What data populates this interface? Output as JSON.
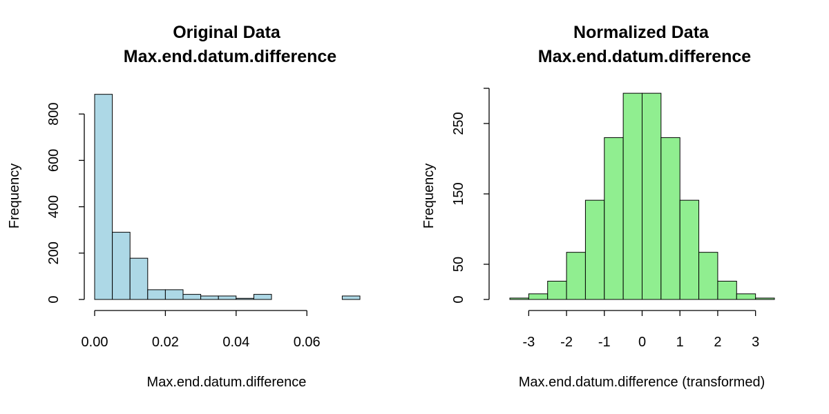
{
  "chart_data": [
    {
      "type": "bar",
      "title": "Original Data",
      "subtitle": "Max.end.datum.difference",
      "xlabel": "Max.end.datum.difference",
      "ylabel": "Frequency",
      "bar_color": "#add8e6",
      "xlim": [
        0,
        0.075
      ],
      "ylim": [
        0,
        890
      ],
      "x_ticks": [
        0,
        0.02,
        0.04,
        0.06
      ],
      "x_tick_labels": [
        "0.00",
        "0.02",
        "0.04",
        "0.06"
      ],
      "y_ticks": [
        0,
        200,
        400,
        600,
        800
      ],
      "y_tick_labels": [
        "0",
        "200",
        "400",
        "600",
        "800"
      ],
      "bins": [
        {
          "start": 0.0,
          "end": 0.005,
          "count": 885
        },
        {
          "start": 0.005,
          "end": 0.01,
          "count": 290
        },
        {
          "start": 0.01,
          "end": 0.015,
          "count": 178
        },
        {
          "start": 0.015,
          "end": 0.02,
          "count": 42
        },
        {
          "start": 0.02,
          "end": 0.025,
          "count": 42
        },
        {
          "start": 0.025,
          "end": 0.03,
          "count": 22
        },
        {
          "start": 0.03,
          "end": 0.035,
          "count": 15
        },
        {
          "start": 0.035,
          "end": 0.04,
          "count": 15
        },
        {
          "start": 0.04,
          "end": 0.045,
          "count": 5
        },
        {
          "start": 0.045,
          "end": 0.05,
          "count": 22
        },
        {
          "start": 0.05,
          "end": 0.055,
          "count": 0
        },
        {
          "start": 0.055,
          "end": 0.06,
          "count": 0
        },
        {
          "start": 0.06,
          "end": 0.065,
          "count": 0
        },
        {
          "start": 0.065,
          "end": 0.07,
          "count": 0
        },
        {
          "start": 0.07,
          "end": 0.075,
          "count": 15
        }
      ]
    },
    {
      "type": "bar",
      "title": "Normalized Data",
      "subtitle": "Max.end.datum.difference",
      "xlabel": "Max.end.datum.difference (transformed)",
      "ylabel": "Frequency",
      "bar_color": "#90ee90",
      "xlim": [
        -3.5,
        3.5
      ],
      "ylim": [
        0,
        300
      ],
      "x_ticks": [
        -3,
        -2,
        -1,
        0,
        1,
        2,
        3
      ],
      "x_tick_labels": [
        "-3",
        "-2",
        "-1",
        "0",
        "1",
        "2",
        "3"
      ],
      "y_ticks": [
        0,
        50,
        150,
        250
      ],
      "y_tick_labels": [
        "0",
        "50",
        "150",
        "250"
      ],
      "bins": [
        {
          "start": -3.5,
          "end": -3.0,
          "count": 2
        },
        {
          "start": -3.0,
          "end": -2.5,
          "count": 8
        },
        {
          "start": -2.5,
          "end": -2.0,
          "count": 26
        },
        {
          "start": -2.0,
          "end": -1.5,
          "count": 67
        },
        {
          "start": -1.5,
          "end": -1.0,
          "count": 141
        },
        {
          "start": -1.0,
          "end": -0.5,
          "count": 230
        },
        {
          "start": -0.5,
          "end": 0.0,
          "count": 293
        },
        {
          "start": 0.0,
          "end": 0.5,
          "count": 293
        },
        {
          "start": 0.5,
          "end": 1.0,
          "count": 230
        },
        {
          "start": 1.0,
          "end": 1.5,
          "count": 141
        },
        {
          "start": 1.5,
          "end": 2.0,
          "count": 67
        },
        {
          "start": 2.0,
          "end": 2.5,
          "count": 26
        },
        {
          "start": 2.5,
          "end": 3.0,
          "count": 8
        },
        {
          "start": 3.0,
          "end": 3.5,
          "count": 2
        }
      ]
    }
  ]
}
